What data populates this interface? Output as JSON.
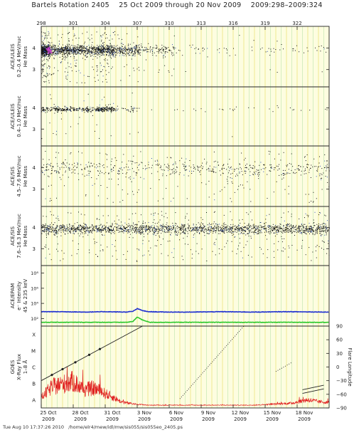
{
  "title": {
    "bartels": "Bartels Rotation 2405",
    "range": "25 Oct 2009 through 20 Nov 2009",
    "doy": "2009:298–2009:324"
  },
  "footer": {
    "timestamp": "Tue Aug 10 17:37:26 2010",
    "path": "/home/elr4/mew/idl/mw/sis055/sis055eo_2405.ps"
  },
  "colors": {
    "panel_bg": "#fdfde0",
    "grid_yellow": "#e8e070",
    "grid_green": "#b0e0a0",
    "points": "#111111",
    "points_blue": "#3355bb",
    "magenta": "#cc44cc",
    "blue_line": "#1e2fd0",
    "green_line": "#2ec82e",
    "red_flux": "#e02020"
  },
  "chart_data": {
    "type": "scatter",
    "x_axis": {
      "top_ticks": [
        "298",
        "301",
        "304",
        "307",
        "310",
        "313",
        "316",
        "319",
        "322"
      ],
      "top_tick_days": [
        298,
        301,
        304,
        307,
        310,
        313,
        316,
        319,
        322
      ],
      "bottom_ticks": [
        {
          "label": "25 Oct",
          "year": "2009",
          "day": 298
        },
        {
          "label": "28 Oct",
          "year": "2009",
          "day": 301
        },
        {
          "label": "31 Oct",
          "year": "2009",
          "day": 304
        },
        {
          "label": "3 Nov",
          "year": "2009",
          "day": 307
        },
        {
          "label": "6 Nov",
          "year": "2009",
          "day": 310
        },
        {
          "label": "9 Nov",
          "year": "2009",
          "day": 313
        },
        {
          "label": "12 Nov",
          "year": "2009",
          "day": 316
        },
        {
          "label": "15 Nov",
          "year": "2009",
          "day": 319
        },
        {
          "label": "18 Nov",
          "year": "2009",
          "day": 322
        }
      ],
      "xlim": [
        298,
        325
      ]
    },
    "panels": [
      {
        "id": "ace-ulees-low",
        "ylabel": [
          "ACE/ULEIS",
          "0.2–0.4 MeV/nuc",
          "He Mass"
        ],
        "yticks": [
          "3",
          "4"
        ],
        "ylim": [
          2.2,
          5.0
        ],
        "center": 3.9,
        "spread": 0.12,
        "outlier_frac": 0.15,
        "density": [
          {
            "from": 298.0,
            "to": 298.8,
            "n": 520
          },
          {
            "from": 298.8,
            "to": 301.5,
            "n": 450
          },
          {
            "from": 301.5,
            "to": 303.2,
            "n": 230
          },
          {
            "from": 303.2,
            "to": 304.8,
            "n": 330
          },
          {
            "from": 304.8,
            "to": 307.2,
            "n": 230
          },
          {
            "from": 307.2,
            "to": 310.5,
            "n": 110
          },
          {
            "from": 310.5,
            "to": 325.0,
            "n": 70
          }
        ],
        "highlight": {
          "day": 298.7,
          "mass": 3.9,
          "label": "magenta cluster"
        }
      },
      {
        "id": "ace-ulees-high",
        "ylabel": [
          "ACE/ULEIS",
          "0.4–1.0 MeV/nuc",
          "He Mass"
        ],
        "yticks": [
          "3",
          "4"
        ],
        "ylim": [
          2.2,
          5.0
        ],
        "center": 3.95,
        "spread": 0.06,
        "outlier_frac": 0.06,
        "density": [
          {
            "from": 298.0,
            "to": 302.0,
            "n": 200
          },
          {
            "from": 302.0,
            "to": 303.2,
            "n": 60
          },
          {
            "from": 303.2,
            "to": 304.8,
            "n": 150
          },
          {
            "from": 304.8,
            "to": 307.2,
            "n": 40
          },
          {
            "from": 307.2,
            "to": 325.0,
            "n": 30
          }
        ]
      },
      {
        "id": "ace-sis-mid",
        "ylabel": [
          "ACE/SIS",
          "4.5–7.6 MeV/nuc",
          "He Mass"
        ],
        "yticks": [
          "3",
          "4"
        ],
        "ylim": [
          2.2,
          5.0
        ],
        "center": 3.95,
        "spread": 0.18,
        "outlier_frac": 0.25,
        "density": [
          {
            "from": 298.0,
            "to": 325.0,
            "n": 650
          }
        ]
      },
      {
        "id": "ace-sis-high",
        "ylabel": [
          "ACE/SIS",
          "7.6–16.3 MeV/nuc",
          "He Mass"
        ],
        "yticks": [
          "3",
          "4"
        ],
        "ylim": [
          2.2,
          5.0
        ],
        "center": 3.95,
        "spread": 0.12,
        "outlier_frac": 0.15,
        "density": [
          {
            "from": 298.0,
            "to": 325.0,
            "n": 2100
          }
        ]
      },
      {
        "id": "ace-epam",
        "type": "line",
        "ylabel": [
          "ACE/EPAM",
          "e⁻ Intensity",
          "45 & 235 keV"
        ],
        "yticks": [
          "10²",
          "10⁴",
          "10⁶",
          "10⁸"
        ],
        "ylim_log10": [
          1,
          9
        ],
        "series": [
          {
            "name": "45 keV",
            "color": "#1e2fd0",
            "x": [
              298,
              300,
              302,
              304,
              306,
              306.6,
              307.0,
              307.5,
              308,
              310,
              312,
              315,
              318,
              321,
              325
            ],
            "y_log10": [
              2.9,
              2.9,
              2.85,
              2.9,
              2.85,
              2.95,
              3.3,
              3.05,
              2.9,
              2.85,
              2.85,
              2.9,
              2.85,
              2.9,
              2.85
            ]
          },
          {
            "name": "235 keV",
            "color": "#2ec82e",
            "x": [
              298,
              300,
              302,
              304,
              306,
              306.6,
              307.0,
              307.5,
              308.2,
              310,
              313,
              317,
              321,
              325
            ],
            "y_log10": [
              1.5,
              1.5,
              1.5,
              1.5,
              1.5,
              1.6,
              2.2,
              1.8,
              1.5,
              1.5,
              1.5,
              1.5,
              1.5,
              1.5
            ]
          }
        ]
      },
      {
        "id": "goes",
        "type": "mixed",
        "ylabel": [
          "GOES",
          "X-Ray Flux",
          "1–8 Å"
        ],
        "ylabels_left": [
          "X",
          "M",
          "C",
          "B",
          "A"
        ],
        "y2label": "Flare Longitude",
        "yticks_right": [
          "90",
          "60",
          "30",
          "0",
          "−30",
          "−60",
          "−90"
        ],
        "y2lim": [
          -90,
          90
        ],
        "xray_class_bands": [
          "A",
          "B",
          "C",
          "M",
          "X"
        ],
        "flux_envelope": [
          {
            "day": 298,
            "level": 0.6
          },
          {
            "day": 299,
            "level": 1.4
          },
          {
            "day": 300,
            "level": 1.6
          },
          {
            "day": 301,
            "level": 1.8
          },
          {
            "day": 302,
            "level": 1.2
          },
          {
            "day": 303,
            "level": 1.3
          },
          {
            "day": 304,
            "level": 0.9
          },
          {
            "day": 304.8,
            "level": 0.6
          },
          {
            "day": 305.5,
            "level": 0.3
          },
          {
            "day": 306.5,
            "level": 0.15
          },
          {
            "day": 308,
            "level": 0.05
          },
          {
            "day": 318,
            "level": 0.05
          },
          {
            "day": 321.5,
            "level": 0.2
          },
          {
            "day": 323,
            "level": 0.45
          },
          {
            "day": 324,
            "level": 0.3
          },
          {
            "day": 325,
            "level": 0.25
          }
        ],
        "longitude_tracks": [
          {
            "x0": 298.0,
            "y0": -30,
            "x1": 307.5,
            "y1": 90,
            "style": "line"
          },
          {
            "x0": 311.0,
            "y0": -70,
            "x1": 317.0,
            "y1": 90,
            "style": "dotted"
          },
          {
            "x0": 320.0,
            "y0": -10,
            "x1": 321.5,
            "y1": 10,
            "style": "dotted"
          },
          {
            "x0": 322.5,
            "y0": -50,
            "x1": 324.5,
            "y1": -40,
            "style": "line"
          },
          {
            "x0": 322.5,
            "y0": -58,
            "x1": 324.5,
            "y1": -48,
            "style": "line"
          }
        ]
      }
    ]
  }
}
